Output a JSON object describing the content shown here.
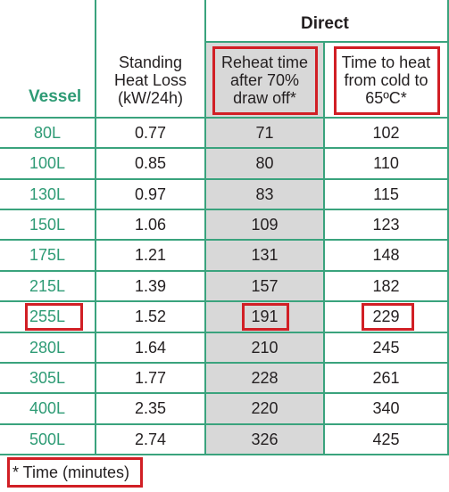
{
  "header": {
    "group_label": "Direct",
    "vessel_label": "Vessel",
    "col_standing": [
      "Standing",
      "Heat Loss",
      "(kW/24h)"
    ],
    "col_reheat": [
      "Reheat time",
      "after 70%",
      "draw off*"
    ],
    "col_heat": [
      "Time to heat",
      "from cold to",
      "65ºC*"
    ]
  },
  "rows": [
    {
      "vessel": "80L",
      "loss": "0.77",
      "reheat": "71",
      "heat": "102"
    },
    {
      "vessel": "100L",
      "loss": "0.85",
      "reheat": "80",
      "heat": "110"
    },
    {
      "vessel": "130L",
      "loss": "0.97",
      "reheat": "83",
      "heat": "115"
    },
    {
      "vessel": "150L",
      "loss": "1.06",
      "reheat": "109",
      "heat": "123"
    },
    {
      "vessel": "175L",
      "loss": "1.21",
      "reheat": "131",
      "heat": "148"
    },
    {
      "vessel": "215L",
      "loss": "1.39",
      "reheat": "157",
      "heat": "182"
    },
    {
      "vessel": "255L",
      "loss": "1.52",
      "reheat": "191",
      "heat": "229"
    },
    {
      "vessel": "280L",
      "loss": "1.64",
      "reheat": "210",
      "heat": "245"
    },
    {
      "vessel": "305L",
      "loss": "1.77",
      "reheat": "228",
      "heat": "261"
    },
    {
      "vessel": "400L",
      "loss": "2.35",
      "reheat": "220",
      "heat": "340"
    },
    {
      "vessel": "500L",
      "loss": "2.74",
      "reheat": "326",
      "heat": "425"
    }
  ],
  "footnote": "* Time (minutes)",
  "colors": {
    "grid": "#3aa37d",
    "vessel_text": "#2e9b75",
    "highlight": "#d11f25",
    "shade": "#d8d8d8"
  }
}
